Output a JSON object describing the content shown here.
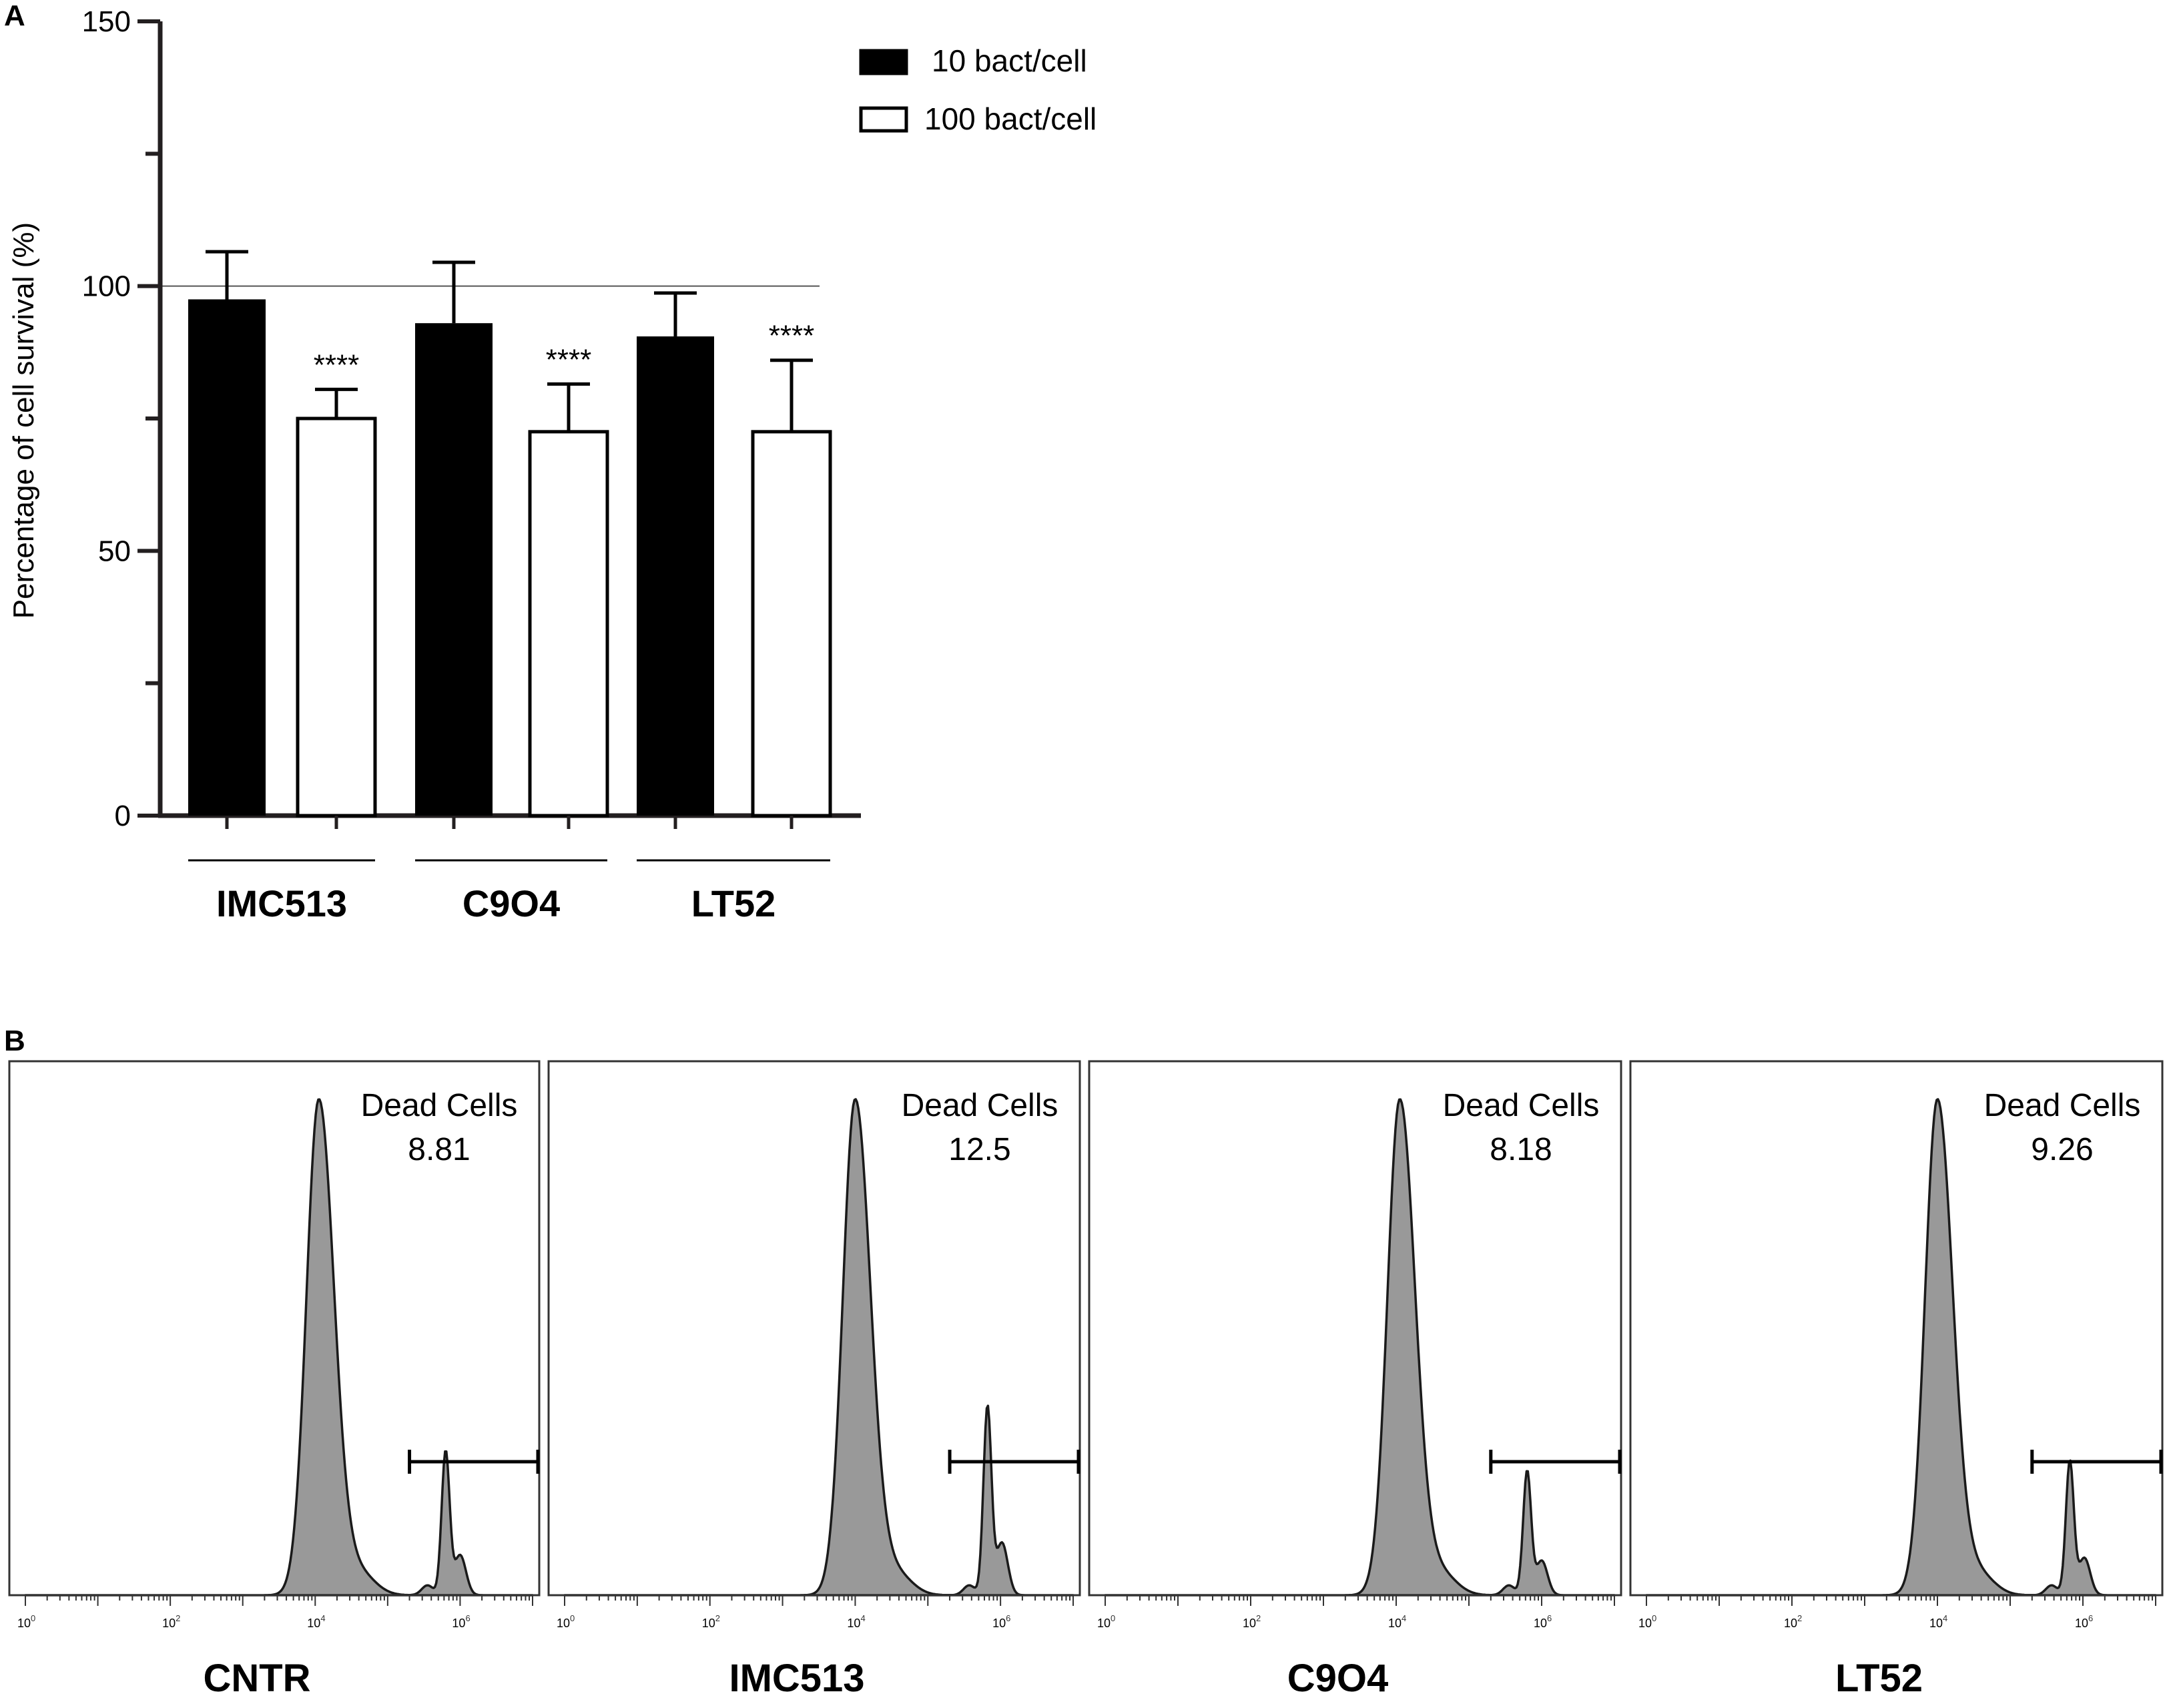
{
  "colors": {
    "bar_10": "#000000",
    "bar_100": "#ffffff",
    "axis": "#231f20",
    "histogram_fill": "#999999",
    "histogram_line": "#1a1a1a",
    "reference_line": "#555555"
  },
  "chart_data": [
    {
      "panel": "A",
      "type": "bar",
      "title": "",
      "xlabel": "",
      "ylabel": "Percentage of cell survival (%)",
      "ylim": [
        0,
        150
      ],
      "yticks_major": [
        0,
        50,
        100,
        150
      ],
      "yticks_minor": [
        25,
        75,
        125
      ],
      "reference_line": 100,
      "categories": [
        "IMC513",
        "C9O4",
        "LT52"
      ],
      "series": [
        {
          "name": "10 bact/cell",
          "color": "#000000",
          "values": [
            97.5,
            93,
            90.5
          ],
          "errors": [
            9,
            11.5,
            8.2
          ]
        },
        {
          "name": "100 bact/cell",
          "color": "#ffffff",
          "values": [
            75,
            72.5,
            72.5
          ],
          "errors": [
            5.5,
            9,
            13.5
          ],
          "annotations": [
            "****",
            "****",
            "****"
          ]
        }
      ],
      "legend_position": "top-right"
    },
    {
      "panel": "B",
      "type": "area",
      "title": "",
      "xlabel": "",
      "ylabel": "",
      "x_scale": "log10",
      "xlim": [
        1,
        10000000
      ],
      "x_decade_labels": [
        "10",
        "10",
        "10",
        "10"
      ],
      "x_decade_exponents": [
        "0",
        "2",
        "4",
        "6"
      ],
      "x_decade_powers": [
        0,
        2,
        4,
        6
      ],
      "gate": {
        "label": "Dead Cells",
        "range": [
          200000,
          10000000
        ]
      },
      "panels": [
        {
          "sample": "CNTR",
          "gate_value": "8.81",
          "main_peak_log10": 4.05,
          "main_peak_height": 1.0,
          "secondary_peak_log10": 5.8,
          "secondary_peak_height": 0.29
        },
        {
          "sample": "IMC513",
          "gate_value": "12.5",
          "main_peak_log10": 4.0,
          "main_peak_height": 1.0,
          "secondary_peak_log10": 5.82,
          "secondary_peak_height": 0.38
        },
        {
          "sample": "C9O4",
          "gate_value": "8.18",
          "main_peak_log10": 4.05,
          "main_peak_height": 1.0,
          "secondary_peak_log10": 5.8,
          "secondary_peak_height": 0.25
        },
        {
          "sample": "LT52",
          "gate_value": "9.26",
          "main_peak_log10": 4.0,
          "main_peak_height": 1.0,
          "secondary_peak_log10": 5.82,
          "secondary_peak_height": 0.27
        }
      ]
    }
  ]
}
